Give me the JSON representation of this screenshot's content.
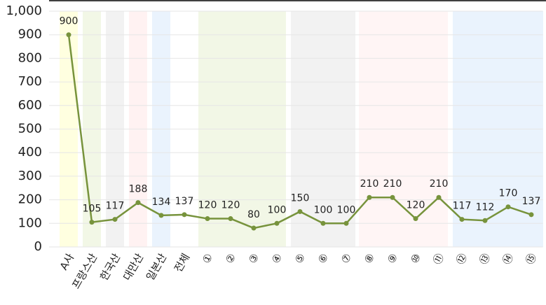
{
  "chart_data": {
    "type": "line",
    "categories": [
      "A사",
      "프랑스산",
      "한국산",
      "대만산",
      "일본산",
      "전체",
      "①",
      "②",
      "③",
      "④",
      "⑤",
      "⑥",
      "⑦",
      "⑧",
      "⑨",
      "⑩",
      "⑪",
      "⑫",
      "⑬",
      "⑭",
      "⑮"
    ],
    "values": [
      900,
      105,
      117,
      188,
      134,
      137,
      120,
      120,
      80,
      100,
      150,
      100,
      100,
      210,
      210,
      120,
      210,
      117,
      112,
      170,
      137
    ],
    "color": "#77933c",
    "ylim": [
      0,
      1000
    ],
    "yticks": [
      0,
      100,
      200,
      300,
      400,
      500,
      600,
      700,
      800,
      900,
      {
        "value": 1000,
        "label": "1,000"
      }
    ],
    "grid": true
  }
}
